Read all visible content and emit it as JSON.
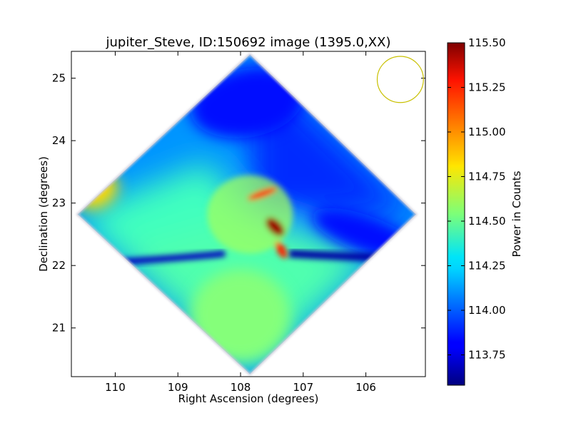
{
  "chart_data": {
    "type": "heatmap",
    "title": "jupiter_Steve, ID:150692 image (1395.0,XX)",
    "xlabel": "Right Ascension (degrees)",
    "ylabel": "Declination (degrees)",
    "xlim": [
      110.7,
      105.05
    ],
    "ylim": [
      20.22,
      25.43
    ],
    "x_ticks": [
      110,
      109,
      108,
      107,
      106
    ],
    "y_ticks": [
      21,
      22,
      23,
      24,
      25
    ],
    "x_tick_labels": [
      "110",
      "109",
      "108",
      "107",
      "106"
    ],
    "y_tick_labels": [
      "21",
      "22",
      "23",
      "24",
      "25"
    ],
    "grid": false,
    "colormap": "jet",
    "colorbar": {
      "label": "Power in Counts",
      "range": [
        113.58,
        115.5
      ],
      "ticks": [
        113.75,
        114.0,
        114.25,
        114.5,
        114.75,
        115.0,
        115.25,
        115.5
      ],
      "tick_labels": [
        "113.75",
        "114.00",
        "114.25",
        "114.50",
        "114.75",
        "115.00",
        "115.25",
        "115.50"
      ]
    },
    "footprint": {
      "shape": "diamond",
      "center": [
        107.85,
        22.82
      ],
      "corners": {
        "top": [
          107.85,
          25.38
        ],
        "right": [
          105.2,
          22.82
        ],
        "bottom": [
          107.85,
          20.26
        ],
        "left": [
          110.6,
          22.82
        ]
      }
    },
    "features": [
      {
        "name": "central-peak",
        "x": 107.45,
        "y": 22.62,
        "value": 115.45
      },
      {
        "name": "upper-peak",
        "x": 107.65,
        "y": 23.15,
        "value": 115.2
      },
      {
        "name": "lower-peak",
        "x": 107.35,
        "y": 22.25,
        "value": 115.2
      },
      {
        "name": "left-lobe",
        "x": 110.3,
        "y": 23.2,
        "value": 114.85
      },
      {
        "name": "bottom-lobe",
        "x": 108.0,
        "y": 21.2,
        "value": 114.55
      },
      {
        "name": "top-lobe",
        "x": 107.9,
        "y": 24.6,
        "value": 113.85
      },
      {
        "name": "right-lobe",
        "x": 106.0,
        "y": 22.5,
        "value": 113.85
      }
    ],
    "beam": {
      "shape": "circle",
      "center": [
        105.45,
        24.98
      ],
      "radius_deg": 0.37,
      "color": "#c8c000"
    }
  }
}
